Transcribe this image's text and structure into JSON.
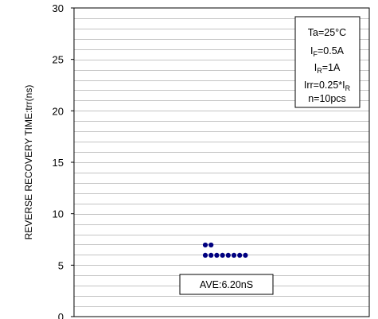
{
  "chart_data": {
    "type": "scatter",
    "title": "",
    "ylabel": "REVERSE RECOVERY TIME:trr(ns)",
    "xlabel": "",
    "ylim": [
      0,
      30
    ],
    "y_ticks": [
      "0",
      "5",
      "10",
      "15",
      "20",
      "25",
      "30"
    ],
    "minor_grid_step": 1,
    "grid": true,
    "marker_color": "#000080",
    "series": [
      {
        "points": [
          {
            "col": 0,
            "y": 7
          },
          {
            "col": 1,
            "y": 7
          },
          {
            "col": 0,
            "y": 6
          },
          {
            "col": 1,
            "y": 6
          },
          {
            "col": 2,
            "y": 6
          },
          {
            "col": 3,
            "y": 6
          },
          {
            "col": 4,
            "y": 6
          },
          {
            "col": 5,
            "y": 6
          },
          {
            "col": 6,
            "y": 6
          },
          {
            "col": 7,
            "y": 6
          }
        ]
      }
    ],
    "conditions": {
      "ta": "Ta=25°C",
      "if_main": "I",
      "if_sub": "F",
      "if_val": "=0.5A",
      "ir_main": "I",
      "ir_sub": "R",
      "ir_val": "=1A",
      "irr_main": "Irr=0.25*I",
      "irr_sub": "R",
      "n": "n=10pcs"
    },
    "average_label": "AVE:6.20nS"
  }
}
